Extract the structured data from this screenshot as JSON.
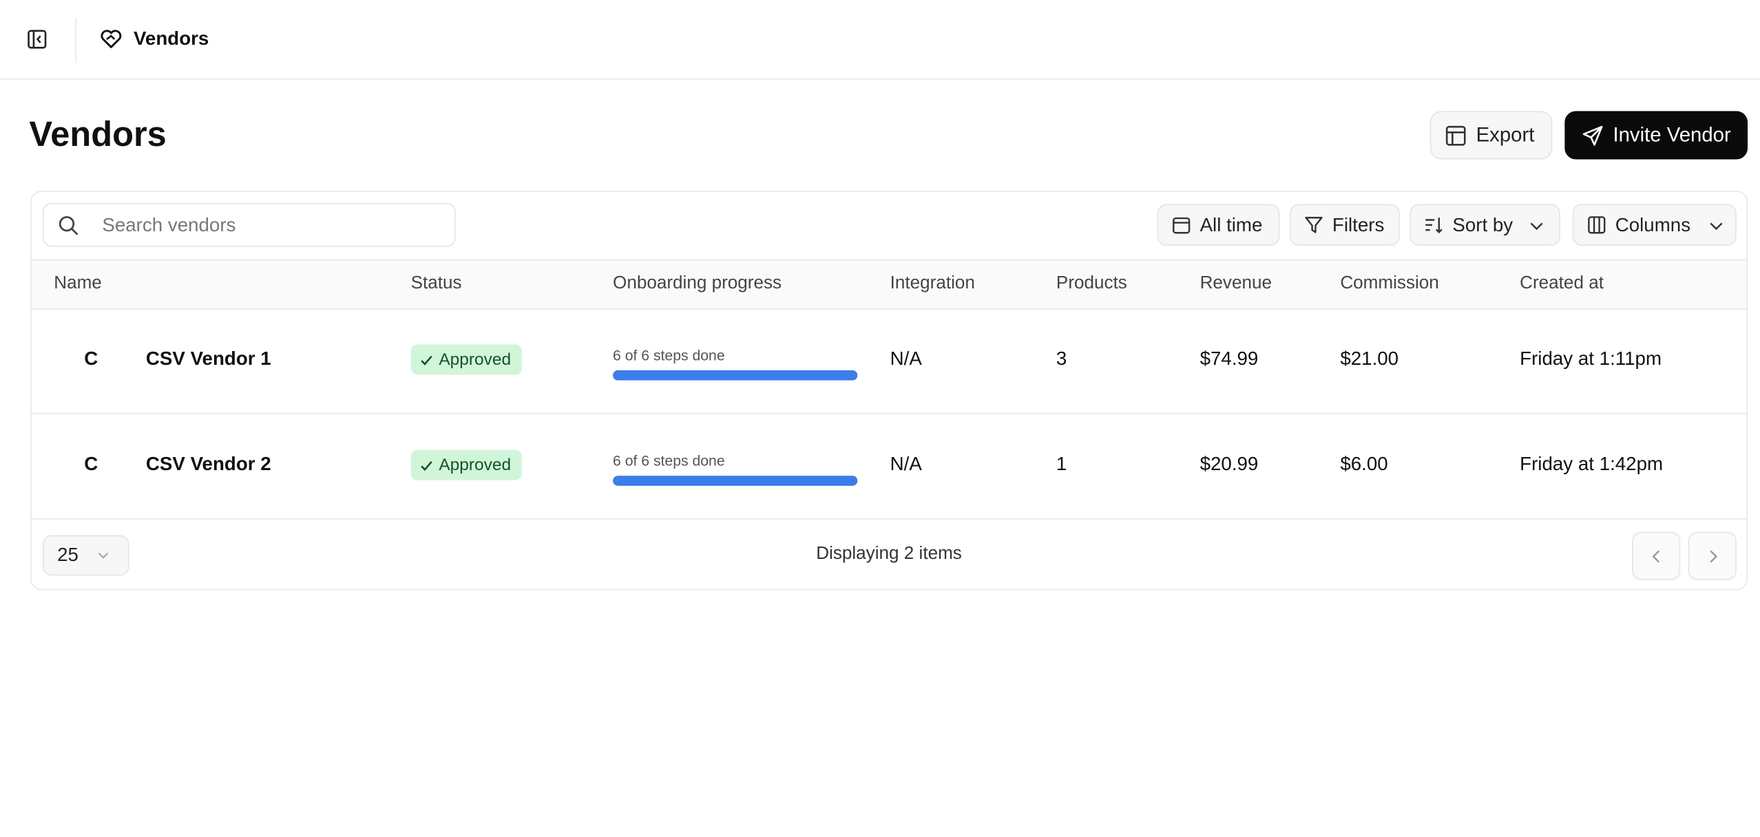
{
  "header": {
    "title": "Vendors"
  },
  "page": {
    "title": "Vendors",
    "actions": [
      "Export",
      "Invite Vendor"
    ]
  },
  "toolbar": {
    "search_placeholder": "Search vendors",
    "buttons": [
      "All time",
      "Filters",
      "Sort by",
      "Columns"
    ]
  },
  "table": {
    "columns": [
      "Name",
      "Status",
      "Onboarding progress",
      "Integration",
      "Products",
      "Revenue",
      "Commission",
      "Created at"
    ],
    "rows": [
      {
        "avatar": "C",
        "name": "CSV Vendor 1",
        "status": "Approved",
        "progress": {
          "label": "6 of 6 steps done",
          "done": 6,
          "total": 6
        },
        "integration": "N/A",
        "products": "3",
        "revenue": "$74.99",
        "commission": "$21.00",
        "created_at": "Friday at 1:11pm"
      },
      {
        "avatar": "C",
        "name": "CSV Vendor 2",
        "status": "Approved",
        "progress": {
          "label": "6 of 6 steps done",
          "done": 6,
          "total": 6
        },
        "integration": "N/A",
        "products": "1",
        "revenue": "$20.99",
        "commission": "$6.00",
        "created_at": "Friday at 1:42pm"
      }
    ]
  },
  "footer": {
    "page_size": "25",
    "summary": "Displaying 2 items"
  }
}
